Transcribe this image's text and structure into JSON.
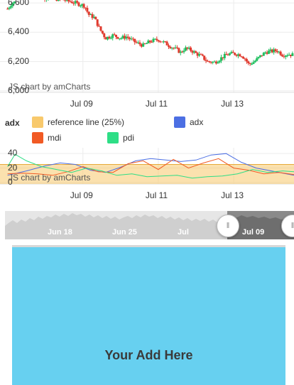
{
  "chart_data": [
    {
      "type": "candlestick",
      "title": "",
      "ylabel": "",
      "y_ticks": [
        "6,600",
        "6,400",
        "6,200",
        "6,000"
      ],
      "y_tick_values": [
        6600,
        6400,
        6200,
        6000
      ],
      "ylim": [
        5990,
        6620
      ],
      "x_ticks": [
        "Jul 09",
        "Jul 11",
        "Jul 13"
      ],
      "x_tick_values": [
        2,
        4,
        6
      ],
      "xlim": [
        -0.2,
        7.6
      ],
      "credit": "JS chart by amCharts",
      "color_up": "#20c060",
      "color_down": "#e03a2e",
      "path": [
        [
          0.0,
          6560
        ],
        [
          0.12,
          6600
        ],
        [
          0.18,
          6605
        ],
        [
          0.9,
          6640
        ],
        [
          1.2,
          6630
        ],
        [
          1.5,
          6620
        ],
        [
          1.8,
          6600
        ],
        [
          2.05,
          6580
        ],
        [
          2.15,
          6520
        ],
        [
          2.3,
          6500
        ],
        [
          2.45,
          6420
        ],
        [
          2.6,
          6360
        ],
        [
          2.8,
          6380
        ],
        [
          3.0,
          6360
        ],
        [
          3.15,
          6370
        ],
        [
          3.4,
          6330
        ],
        [
          3.6,
          6310
        ],
        [
          3.8,
          6340
        ],
        [
          4.0,
          6350
        ],
        [
          4.15,
          6330
        ],
        [
          4.35,
          6300
        ],
        [
          4.5,
          6280
        ],
        [
          4.6,
          6260
        ],
        [
          4.7,
          6290
        ],
        [
          4.85,
          6280
        ],
        [
          5.0,
          6255
        ],
        [
          5.15,
          6235
        ],
        [
          5.3,
          6200
        ],
        [
          5.5,
          6195
        ],
        [
          5.7,
          6230
        ],
        [
          5.85,
          6250
        ],
        [
          6.0,
          6255
        ],
        [
          6.2,
          6245
        ],
        [
          6.3,
          6220
        ],
        [
          6.4,
          6180
        ],
        [
          6.55,
          6200
        ],
        [
          6.7,
          6235
        ],
        [
          6.85,
          6265
        ],
        [
          7.0,
          6270
        ],
        [
          7.15,
          6275
        ],
        [
          7.3,
          6245
        ],
        [
          7.45,
          6250
        ],
        [
          7.6,
          6245
        ]
      ]
    },
    {
      "type": "line",
      "title": "adx",
      "y_ticks": [
        "40",
        "20",
        "0"
      ],
      "y_tick_values": [
        40,
        20,
        0
      ],
      "ylim": [
        -2,
        48
      ],
      "x_ticks": [
        "Jul 09",
        "Jul 11",
        "Jul 13"
      ],
      "x_tick_values": [
        2,
        4,
        6
      ],
      "xlim": [
        -0.2,
        7.6
      ],
      "credit": "JS chart by amCharts",
      "reference_line": {
        "name": "reference line (25%)",
        "value": 25,
        "color": "#f8c96c"
      },
      "series": [
        {
          "name": "adx",
          "color": "#4c6fe3",
          "x": [
            0.0,
            0.5,
            1.0,
            1.4,
            1.8,
            2.2,
            2.6,
            3.0,
            3.4,
            3.8,
            4.2,
            4.6,
            5.0,
            5.4,
            5.8,
            6.2,
            6.6,
            7.0,
            7.4,
            7.6
          ],
          "values": [
            10,
            16,
            23,
            27,
            25,
            17,
            14,
            21,
            30,
            33,
            31,
            29,
            31,
            38,
            40,
            28,
            20,
            16,
            12,
            10
          ]
        },
        {
          "name": "mdi",
          "color": "#f15a24",
          "x": [
            0.0,
            0.4,
            0.8,
            1.2,
            1.6,
            2.0,
            2.4,
            2.8,
            3.2,
            3.6,
            4.0,
            4.4,
            4.8,
            5.2,
            5.6,
            6.0,
            6.4,
            6.8,
            7.2,
            7.6
          ],
          "values": [
            12,
            13,
            12,
            10,
            15,
            22,
            15,
            14,
            26,
            30,
            18,
            32,
            20,
            27,
            33,
            20,
            17,
            12,
            14,
            11
          ]
        },
        {
          "name": "pdi",
          "color": "#2ede86",
          "x": [
            0.0,
            0.2,
            0.5,
            0.9,
            1.3,
            1.7,
            2.1,
            2.5,
            2.9,
            3.3,
            3.7,
            4.1,
            4.5,
            4.9,
            5.3,
            5.7,
            6.1,
            6.5,
            6.9,
            7.3,
            7.6
          ],
          "values": [
            22,
            39,
            30,
            22,
            18,
            14,
            20,
            16,
            10,
            12,
            8,
            9,
            10,
            6,
            8,
            9,
            12,
            18,
            14,
            16,
            15
          ]
        }
      ]
    },
    {
      "type": "area",
      "title": "navigator",
      "x_ticks": [
        "Jun 18",
        "Jun 25",
        "Jul",
        "Jul 09"
      ],
      "selected_from": "Jul 09"
    }
  ],
  "advert": {
    "text": "Your Add Here"
  }
}
